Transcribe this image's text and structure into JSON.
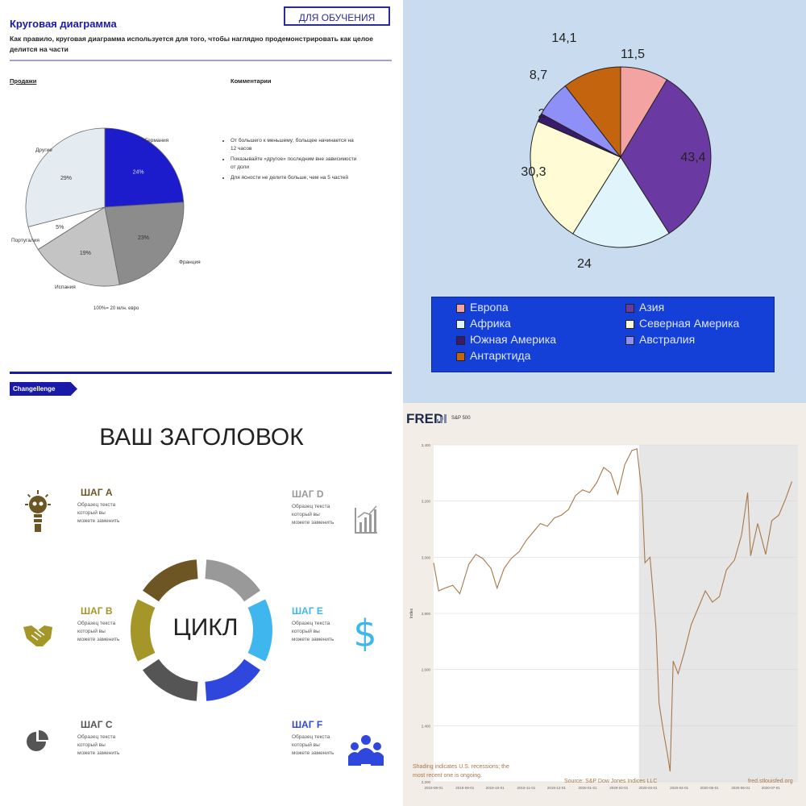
{
  "q1": {
    "title": "Круговая диаграмма",
    "subtitle": "Как правило, круговая диаграмма используется для того, чтобы наглядно продемонстрировать как целое делится на части",
    "badge": "ДЛЯ ОБУЧЕНИЯ",
    "sales_heading": "Продажи",
    "comments_heading": "Комментарии",
    "comments": [
      "От большего к меньшему; больщее начинается на 12 часов",
      "Показывайте «другое» последним вне зависимости от доли",
      "Для ясности не делите больше, чем на 5 частей"
    ],
    "footnote": "100%= 20 млн. евро",
    "tag": "Changellenge",
    "pie": {
      "type": "pie",
      "slices": [
        {
          "label": "Германия",
          "value": 24,
          "value_label": "24%",
          "color": "#1c1ccc"
        },
        {
          "label": "Франция",
          "value": 23,
          "value_label": "23%",
          "color": "#8c8c8c"
        },
        {
          "label": "Испания",
          "value": 19,
          "value_label": "19%",
          "color": "#c4c4c4"
        },
        {
          "label": "Португалия",
          "value": 5,
          "value_label": "5%",
          "color": "#ffffff"
        },
        {
          "label": "Другие",
          "value": 29,
          "value_label": "29%",
          "color": "#e4ecf2"
        }
      ]
    }
  },
  "chart_data": [
    {
      "type": "pie",
      "categories": [
        "Европа",
        "Азия",
        "Африка",
        "Северная Америка",
        "Южная Америка",
        "Австралия",
        "Антарктида"
      ],
      "values": [
        11.5,
        43.4,
        30.3,
        24,
        2,
        8.7,
        14.1
      ],
      "value_labels": [
        "11,5",
        "43,4",
        "30,3",
        "24",
        "2",
        "8,7",
        "14,1"
      ],
      "colors": [
        "#f4a3a3",
        "#6a3aa2",
        "#dff4fb",
        "#fffbd5",
        "#3a1a6a",
        "#8f8ff8",
        "#c4640f"
      ],
      "legend_position": "bottom"
    },
    {
      "type": "line",
      "title": "S&P 500",
      "x_ticks": [
        "2019-08-01",
        "2019-09-01",
        "2019-10-01",
        "2019-11-01",
        "2019-12-01",
        "2020-01-01",
        "2020-02-01",
        "2020-03-01",
        "2020-04-01",
        "2020-05-01",
        "2020-06-01",
        "2020-07-01"
      ],
      "y_ticks": [
        "2,200",
        "2,400",
        "2,600",
        "2,800",
        "3,000",
        "3,200",
        "3,400"
      ],
      "ylabel": "Index",
      "ylim": [
        2200,
        3400
      ],
      "x": [
        "2019-08-01",
        "2019-08-06",
        "2019-08-12",
        "2019-08-20",
        "2019-08-27",
        "2019-09-05",
        "2019-09-12",
        "2019-09-19",
        "2019-09-27",
        "2019-10-03",
        "2019-10-10",
        "2019-10-17",
        "2019-10-25",
        "2019-11-01",
        "2019-11-08",
        "2019-11-15",
        "2019-11-22",
        "2019-11-29",
        "2019-12-06",
        "2019-12-13",
        "2019-12-20",
        "2019-12-27",
        "2020-01-03",
        "2020-01-10",
        "2020-01-17",
        "2020-01-24",
        "2020-01-31",
        "2020-02-07",
        "2020-02-14",
        "2020-02-19",
        "2020-02-24",
        "2020-02-27",
        "2020-03-03",
        "2020-03-09",
        "2020-03-12",
        "2020-03-16",
        "2020-03-20",
        "2020-03-23",
        "2020-03-26",
        "2020-03-31",
        "2020-04-06",
        "2020-04-13",
        "2020-04-20",
        "2020-04-27",
        "2020-05-04",
        "2020-05-11",
        "2020-05-18",
        "2020-05-26",
        "2020-06-02",
        "2020-06-08",
        "2020-06-11",
        "2020-06-18",
        "2020-06-26",
        "2020-07-02",
        "2020-07-09",
        "2020-07-16",
        "2020-07-22"
      ],
      "y": [
        2980,
        2880,
        2890,
        2900,
        2870,
        2975,
        3010,
        2995,
        2960,
        2890,
        2960,
        2995,
        3020,
        3060,
        3090,
        3120,
        3110,
        3140,
        3150,
        3170,
        3220,
        3240,
        3230,
        3265,
        3320,
        3300,
        3225,
        3330,
        3380,
        3386,
        3225,
        2980,
        3000,
        2746,
        2480,
        2386,
        2305,
        2237,
        2630,
        2585,
        2660,
        2760,
        2820,
        2880,
        2840,
        2860,
        2955,
        2990,
        3080,
        3230,
        3005,
        3120,
        3010,
        3130,
        3150,
        3210,
        3270
      ],
      "shading_note": "Shading indicates U.S. recessions; the most recent one is ongoing.",
      "source": "Source: S&P Dow Jones Indices LLC",
      "site": "fred.stlouisfed.org",
      "brand": "FRED"
    }
  ],
  "q3": {
    "title": "ВАШ ЗАГОЛОВОК",
    "center": "ЦИКЛ",
    "step_text": "Образец текста который вы можете заменить",
    "steps": [
      {
        "label": "ШАГ A",
        "color": "#6e5524"
      },
      {
        "label": "ШАГ B",
        "color": "#a5962a"
      },
      {
        "label": "ШАГ C",
        "color": "#555555"
      },
      {
        "label": "ШАГ D",
        "color": "#999999"
      },
      {
        "label": "ШАГ E",
        "color": "#3fb6ee"
      },
      {
        "label": "ШАГ F",
        "color": "#2f47dd"
      }
    ],
    "icons": [
      "lightbulb-icon",
      "handshake-icon",
      "pie-chart-icon",
      "bar-chart-icon",
      "dollar-icon",
      "people-icon"
    ]
  }
}
